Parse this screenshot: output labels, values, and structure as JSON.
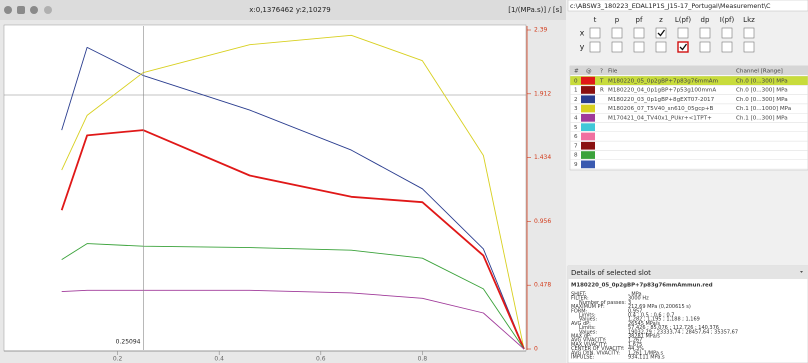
{
  "toolbar": {
    "cursor": "x:0,1376462 y:2,10279",
    "units": "[1/(MPa.s)] / [s]"
  },
  "chart_data": {
    "type": "line",
    "x": [
      0.09,
      0.14,
      0.25,
      0.46,
      0.66,
      0.8,
      0.92,
      1.0
    ],
    "series": [
      {
        "color": "#2a3d8f",
        "values": [
          1.64,
          2.26,
          2.05,
          1.79,
          1.49,
          1.2,
          0.75,
          0
        ]
      },
      {
        "color": "#d8d020",
        "values": [
          1.34,
          1.75,
          2.07,
          2.28,
          2.35,
          2.16,
          1.45,
          0
        ]
      },
      {
        "color": "#e01818",
        "values": [
          1.04,
          1.6,
          1.64,
          1.3,
          1.14,
          1.1,
          0.7,
          0
        ]
      },
      {
        "color": "#3aa23a",
        "values": [
          0.67,
          0.79,
          0.77,
          0.76,
          0.74,
          0.68,
          0.45,
          0
        ]
      },
      {
        "color": "#a03a9a",
        "values": [
          0.43,
          0.44,
          0.44,
          0.44,
          0.42,
          0.38,
          0.27,
          0
        ]
      }
    ],
    "xlim": [
      0,
      1
    ],
    "ylim": [
      0,
      2.39
    ],
    "xticks": [
      0.2,
      0.4,
      0.6,
      0.8
    ],
    "yticks": [
      0,
      0.478,
      0.956,
      1.434,
      1.912,
      2.39
    ],
    "cursor_label": 0.25094
  },
  "panel": {
    "path": "c:\\ABSW3_180223_EDAL1P1S_J15-17_Portugal\\Measurement\\C",
    "flags": {
      "columns": [
        "t",
        "p",
        "pf",
        "z",
        "L(pf)",
        "dp",
        "I(pf)",
        "Lkz"
      ],
      "rows": [
        {
          "label": "x",
          "checked": [
            false,
            false,
            false,
            true,
            false,
            false,
            false,
            false
          ]
        },
        {
          "label": "y",
          "checked": [
            false,
            false,
            false,
            false,
            true,
            false,
            false,
            false
          ]
        }
      ]
    },
    "table": {
      "header": [
        "#",
        "@",
        "?",
        "File",
        "Channel [Range]"
      ],
      "rows": [
        {
          "index": "0",
          "flag": "T",
          "file": "M180220_05_0p2gBP+7p83g76mmAm",
          "channel": "Ch.0 [0...300] MPa",
          "color": "#e01818",
          "selected": true
        },
        {
          "index": "1",
          "flag": "R",
          "file": "M180220_04_0p1gBP+7p53g100mmA",
          "channel": "Ch.0 [0...300] MPa",
          "color": "#8a1010"
        },
        {
          "index": "2",
          "file": "M180220_03_0p1gBP+8gEXT07-2017",
          "channel": "Ch.0 [0...300] MPa",
          "color": "#2a3d8f"
        },
        {
          "index": "3",
          "file": "M180206_07_T5V40_sn610_05gcp+B",
          "channel": "Ch.1 [0...1000] MPa",
          "color": "#d8d020"
        },
        {
          "index": "4",
          "file": "M170421_04_TV40x1_PUkr+<1TPT+",
          "channel": "Ch.1 [0...300] MPa",
          "color": "#a03a9a"
        },
        {
          "index": "5",
          "color": "#40c8d8"
        },
        {
          "index": "6",
          "color": "#f070a0"
        },
        {
          "index": "7",
          "color": "#8a1010"
        },
        {
          "index": "8",
          "color": "#3aa23a"
        },
        {
          "index": "9",
          "color": "#3a5ab0"
        }
      ]
    },
    "details": {
      "title": "Details of selected slot",
      "file": "M180220_05_0p2gBP+7p83g76mmAmmun.red",
      "lines": [
        [
          "SHIFT:",
          "- MPa"
        ],
        [
          "FILTER:",
          "3000 Hz"
        ],
        [
          "Number of passes:",
          "3"
        ],
        [
          "MAXIMUM PF:",
          "212,69 MPa (0,200615 s)"
        ],
        [
          "FORM:",
          "0,957"
        ],
        [
          "Limits:",
          "0,4 ; 0,5 ; 0,6 ; 0,7"
        ],
        [
          "Values:",
          "1,282 ; 1,195 ; 1,188 ; 1,169"
        ],
        [
          "AVG dP:",
          "26545 MPa/s"
        ],
        [
          "Limits:",
          "57,426 ; 85,076 ; 112,726 ; 140,376"
        ],
        [
          "Values:",
          "19032,29 ; 23333,74 ; 28457,64 ; 35357,67"
        ],
        [
          "MAX dP:",
          "38281 MPa/s"
        ],
        [
          "AVG VIVACITY:",
          "1,267"
        ],
        [
          "MAX VIVACITY:",
          "1,675"
        ],
        [
          "CENTER OF VIVACITY:",
          "44,3%"
        ],
        [
          "AVG DYN. VIVACITY:",
          "1,261 1/MPa.s"
        ],
        [
          "IMPULSE:",
          "934,111 MPa.s"
        ]
      ]
    }
  }
}
